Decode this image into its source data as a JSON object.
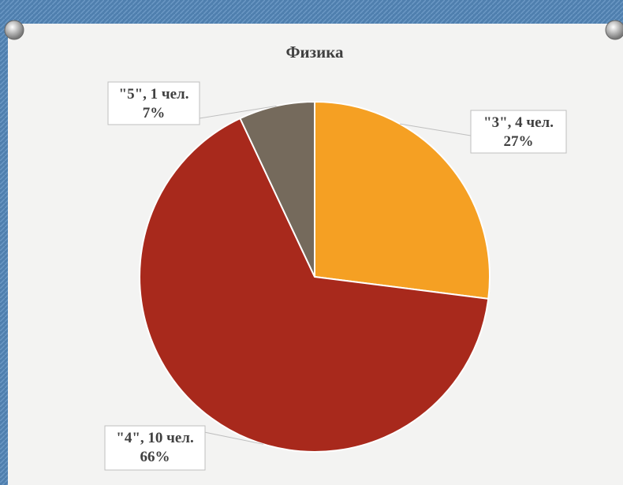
{
  "chart_data": {
    "type": "pie",
    "title": "Физика",
    "categories": [
      "\"3\", 4 чел.",
      "\"4\", 10 чел.",
      "\"5\", 1 чел."
    ],
    "values": [
      27,
      66,
      7
    ],
    "value_labels": [
      "27%",
      "66%",
      "7%"
    ],
    "colors": [
      "#F5A023",
      "#A8291C",
      "#756A5C"
    ]
  }
}
